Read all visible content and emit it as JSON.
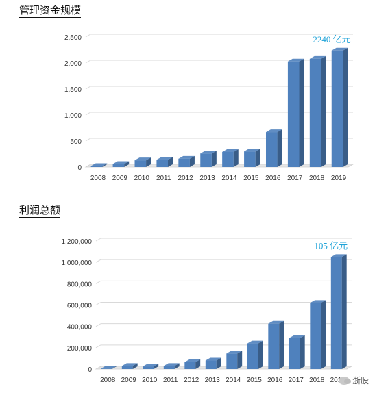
{
  "sections": [
    {
      "title": "管理资金规模"
    },
    {
      "title": "利润总额"
    }
  ],
  "chart_data": [
    {
      "type": "bar",
      "title": "管理资金规模",
      "categories": [
        "2008",
        "2009",
        "2010",
        "2011",
        "2012",
        "2013",
        "2014",
        "2015",
        "2016",
        "2017",
        "2018",
        "2019"
      ],
      "values": [
        20,
        60,
        130,
        140,
        160,
        260,
        290,
        300,
        670,
        2030,
        2080,
        2240
      ],
      "ylim": [
        0,
        2500
      ],
      "yticks": [
        0,
        500,
        1000,
        1500,
        2000,
        2500
      ],
      "ytick_labels": [
        "0",
        "500",
        "1,000",
        "1,500",
        "2,000",
        "2,500"
      ],
      "annotation": "2240 亿元",
      "bar_color": "#4f81bd",
      "grid": true
    },
    {
      "type": "bar",
      "title": "利润总额",
      "categories": [
        "2008",
        "2009",
        "2010",
        "2011",
        "2012",
        "2013",
        "2014",
        "2015",
        "2016",
        "2017",
        "2018",
        "2019"
      ],
      "values": [
        5000,
        30000,
        25000,
        30000,
        65000,
        80000,
        145000,
        240000,
        425000,
        290000,
        620000,
        1050000
      ],
      "ylim": [
        0,
        1200000
      ],
      "yticks": [
        0,
        200000,
        400000,
        600000,
        800000,
        1000000,
        1200000
      ],
      "ytick_labels": [
        "0",
        "200,000",
        "400,000",
        "600,000",
        "800,000",
        "1,000,000",
        "1,200,000"
      ],
      "annotation": "105 亿元",
      "bar_color": "#4f81bd",
      "grid": true
    }
  ],
  "watermark": {
    "text": "浙股",
    "icon": "chat-bubble-icon"
  }
}
